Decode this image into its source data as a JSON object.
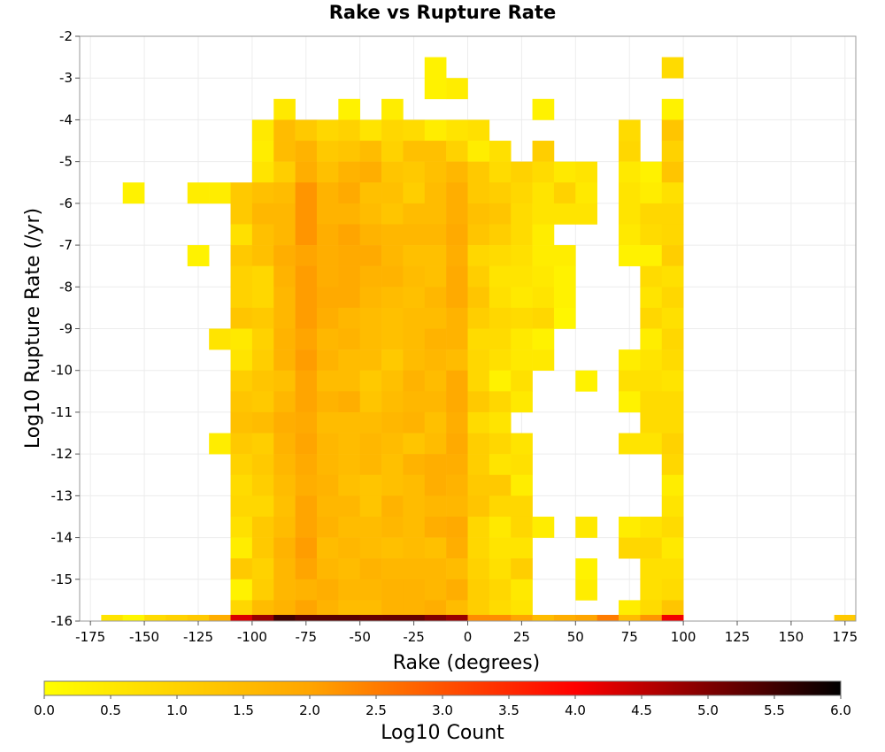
{
  "chart_data": {
    "type": "heatmap",
    "title": "Rake vs Rupture Rate",
    "xlabel": "Rake (degrees)",
    "ylabel": "Log10 Rupture Rate (/yr)",
    "colorbar_label": "Log10 Count",
    "xlim": [
      -180,
      180
    ],
    "ylim": [
      -16,
      -2
    ],
    "x_ticks": [
      -175,
      -150,
      -125,
      -100,
      -75,
      -50,
      -25,
      0,
      25,
      50,
      75,
      100,
      125,
      150,
      175
    ],
    "y_ticks": [
      -2,
      -3,
      -4,
      -5,
      -6,
      -7,
      -8,
      -9,
      -10,
      -11,
      -12,
      -13,
      -14,
      -15,
      -16
    ],
    "colorbar_ticks": [
      "0.0",
      "0.5",
      "1.0",
      "1.5",
      "2.0",
      "2.5",
      "3.0",
      "3.5",
      "4.0",
      "4.5",
      "5.0",
      "5.5",
      "6.0"
    ],
    "colorbar_range": [
      0,
      6
    ],
    "colorscale": [
      "#ffff00",
      "#ffa500",
      "#ff0000",
      "#000000"
    ],
    "grid": true,
    "legend": "bottom colorbar",
    "bin_x_width_deg": 10,
    "bin_y_height": 0.5,
    "x_bin_centers": [
      -165,
      -155,
      -145,
      -135,
      -125,
      -115,
      -105,
      -95,
      -85,
      -75,
      -65,
      -55,
      -45,
      -35,
      -25,
      -15,
      -5,
      5,
      15,
      25,
      35,
      45,
      55,
      65,
      75,
      85,
      95,
      175
    ],
    "y_bin_centers": [
      -2.75,
      -3.25,
      -3.75,
      -4.25,
      -4.75,
      -5.25,
      -5.75,
      -6.25,
      -6.75,
      -7.25,
      -7.75,
      -8.25,
      -8.75,
      -9.25,
      -9.75,
      -10.25,
      -10.75,
      -11.25,
      -11.75,
      -12.25,
      -12.75,
      -13.25,
      -13.75,
      -14.25,
      -14.75,
      -15.25,
      -15.75
    ],
    "bottom_row_values": [
      0.6,
      0.2,
      0.8,
      1.0,
      1.2,
      1.8,
      4.3,
      4.8,
      5.5,
      5.3,
      5.3,
      5.3,
      5.2,
      5.2,
      5.2,
      5.0,
      4.8,
      2.3,
      2.3,
      2.0,
      1.5,
      1.8,
      2.0,
      2.5,
      1.5,
      2.2,
      4.1,
      1.2
    ],
    "values": [
      [
        null,
        null,
        null,
        null,
        null,
        null,
        null,
        null,
        null,
        null,
        null,
        null,
        null,
        null,
        null,
        0.3,
        null,
        null,
        null,
        null,
        null,
        null,
        null,
        null,
        null,
        null,
        0.8,
        null
      ],
      [
        null,
        null,
        null,
        null,
        null,
        null,
        null,
        null,
        null,
        null,
        null,
        null,
        null,
        null,
        null,
        0.3,
        0.4,
        null,
        null,
        null,
        null,
        null,
        null,
        null,
        null,
        null,
        null,
        null
      ],
      [
        null,
        null,
        null,
        null,
        null,
        null,
        null,
        null,
        0.5,
        null,
        null,
        0.3,
        null,
        0.4,
        null,
        null,
        null,
        null,
        null,
        null,
        0.3,
        null,
        null,
        null,
        null,
        null,
        0.3,
        null
      ],
      [
        null,
        null,
        null,
        null,
        null,
        null,
        null,
        0.5,
        1.5,
        1.2,
        0.9,
        1.0,
        0.6,
        0.9,
        0.8,
        0.4,
        0.6,
        0.7,
        null,
        null,
        null,
        null,
        null,
        null,
        0.8,
        null,
        1.3,
        null
      ],
      [
        null,
        null,
        null,
        null,
        null,
        null,
        null,
        0.4,
        1.5,
        1.7,
        1.2,
        1.3,
        1.5,
        1.0,
        1.4,
        1.4,
        1.0,
        0.4,
        0.7,
        null,
        1.1,
        null,
        null,
        null,
        0.9,
        null,
        1.0,
        null
      ],
      [
        null,
        null,
        null,
        null,
        null,
        null,
        null,
        0.6,
        1.1,
        1.8,
        1.4,
        1.7,
        1.8,
        1.3,
        1.2,
        1.4,
        1.6,
        1.2,
        0.8,
        1.0,
        0.8,
        0.5,
        0.6,
        null,
        0.5,
        0.3,
        1.3,
        null
      ],
      [
        null,
        0.3,
        null,
        null,
        0.4,
        0.4,
        1.2,
        1.4,
        1.5,
        2.2,
        1.7,
        1.9,
        1.4,
        1.4,
        1.1,
        1.5,
        1.8,
        1.2,
        1.1,
        0.9,
        0.6,
        1.0,
        0.5,
        null,
        0.6,
        0.4,
        0.7,
        null
      ],
      [
        null,
        null,
        null,
        null,
        null,
        null,
        1.2,
        1.6,
        1.6,
        2.2,
        1.7,
        1.7,
        1.5,
        1.3,
        1.5,
        1.5,
        1.8,
        1.4,
        1.3,
        0.8,
        0.6,
        0.6,
        0.6,
        null,
        0.6,
        0.9,
        0.9,
        null
      ],
      [
        null,
        null,
        null,
        null,
        null,
        null,
        0.7,
        1.4,
        1.6,
        2.2,
        1.8,
        2.0,
        1.7,
        1.6,
        1.6,
        1.6,
        1.9,
        1.3,
        1.1,
        0.8,
        0.4,
        null,
        null,
        null,
        0.5,
        0.8,
        0.9,
        null
      ],
      [
        null,
        null,
        null,
        null,
        0.3,
        null,
        1.2,
        1.4,
        1.8,
        2.0,
        1.8,
        1.9,
        1.9,
        1.6,
        1.4,
        1.4,
        1.8,
        0.9,
        0.8,
        0.7,
        0.4,
        0.4,
        null,
        null,
        0.3,
        0.3,
        1.1,
        null
      ],
      [
        null,
        null,
        null,
        null,
        null,
        null,
        1.0,
        0.9,
        1.7,
        2.1,
        1.8,
        1.9,
        1.7,
        1.7,
        1.5,
        1.4,
        1.9,
        1.1,
        0.6,
        0.6,
        0.5,
        0.3,
        null,
        null,
        null,
        0.8,
        0.7,
        null
      ],
      [
        null,
        null,
        null,
        null,
        null,
        null,
        1.0,
        0.9,
        1.6,
        2.1,
        1.9,
        1.9,
        1.6,
        1.5,
        1.4,
        1.6,
        1.9,
        1.3,
        0.7,
        0.5,
        0.6,
        0.3,
        null,
        null,
        null,
        0.6,
        0.9,
        null
      ],
      [
        null,
        null,
        null,
        null,
        null,
        null,
        1.3,
        1.2,
        1.6,
        2.1,
        1.8,
        1.6,
        1.5,
        1.4,
        1.5,
        1.5,
        1.7,
        1.1,
        0.9,
        0.8,
        0.9,
        0.2,
        null,
        null,
        null,
        0.9,
        0.7,
        null
      ],
      [
        null,
        null,
        null,
        null,
        null,
        0.6,
        0.5,
        1.0,
        1.7,
        2.0,
        1.6,
        1.7,
        1.5,
        1.4,
        1.5,
        1.7,
        1.7,
        0.8,
        0.8,
        0.5,
        0.3,
        null,
        null,
        null,
        null,
        0.4,
        0.9,
        null
      ],
      [
        null,
        null,
        null,
        null,
        null,
        null,
        0.6,
        1.1,
        1.7,
        2.1,
        1.7,
        1.5,
        1.5,
        1.2,
        1.5,
        1.6,
        1.5,
        0.9,
        0.7,
        0.5,
        0.5,
        null,
        null,
        null,
        0.4,
        0.6,
        0.8,
        null
      ],
      [
        null,
        null,
        null,
        null,
        null,
        null,
        1.1,
        1.3,
        1.4,
        2.0,
        1.5,
        1.5,
        1.2,
        1.4,
        1.7,
        1.5,
        1.9,
        0.9,
        0.3,
        0.7,
        null,
        null,
        0.3,
        null,
        0.7,
        0.7,
        0.6,
        null
      ],
      [
        null,
        null,
        null,
        null,
        null,
        null,
        1.3,
        1.2,
        1.6,
        2.0,
        1.7,
        1.8,
        1.3,
        1.5,
        1.6,
        1.6,
        1.9,
        1.2,
        0.9,
        0.5,
        null,
        null,
        null,
        null,
        0.3,
        0.8,
        0.8,
        null
      ],
      [
        null,
        null,
        null,
        null,
        null,
        null,
        1.4,
        1.5,
        1.8,
        1.9,
        1.5,
        1.5,
        1.5,
        1.6,
        1.7,
        1.4,
        1.8,
        0.8,
        0.6,
        null,
        null,
        null,
        null,
        null,
        null,
        0.8,
        0.8,
        null
      ],
      [
        null,
        null,
        null,
        null,
        null,
        0.4,
        1.2,
        1.1,
        1.7,
        2.0,
        1.6,
        1.5,
        1.6,
        1.5,
        1.3,
        1.5,
        1.9,
        1.1,
        0.9,
        0.6,
        null,
        null,
        null,
        null,
        0.6,
        0.6,
        1.0,
        null
      ],
      [
        null,
        null,
        null,
        null,
        null,
        null,
        1.0,
        1.2,
        1.6,
        1.9,
        1.6,
        1.5,
        1.6,
        1.4,
        1.7,
        1.8,
        1.8,
        1.1,
        0.6,
        0.7,
        null,
        null,
        null,
        null,
        null,
        null,
        0.9,
        null
      ],
      [
        null,
        null,
        null,
        null,
        null,
        null,
        0.8,
        1.1,
        1.5,
        1.8,
        1.7,
        1.4,
        1.3,
        1.4,
        1.5,
        1.8,
        1.7,
        1.2,
        1.2,
        0.4,
        null,
        null,
        null,
        null,
        null,
        null,
        0.4,
        null
      ],
      [
        null,
        null,
        null,
        null,
        null,
        null,
        0.9,
        0.9,
        1.4,
        2.0,
        1.6,
        1.6,
        1.3,
        1.7,
        1.5,
        1.6,
        1.6,
        1.3,
        0.9,
        0.9,
        null,
        null,
        null,
        null,
        null,
        null,
        0.6,
        null
      ],
      [
        null,
        null,
        null,
        null,
        null,
        null,
        0.7,
        1.2,
        1.5,
        2.0,
        1.7,
        1.5,
        1.5,
        1.6,
        1.5,
        1.8,
        1.9,
        0.9,
        0.5,
        0.9,
        0.4,
        null,
        0.5,
        null,
        0.4,
        0.6,
        0.8,
        null
      ],
      [
        null,
        null,
        null,
        null,
        null,
        null,
        0.4,
        1.2,
        1.7,
        2.1,
        1.5,
        1.6,
        1.5,
        1.4,
        1.5,
        1.4,
        1.8,
        0.9,
        0.6,
        0.6,
        null,
        null,
        null,
        null,
        0.9,
        0.9,
        0.5,
        null
      ],
      [
        null,
        null,
        null,
        null,
        null,
        null,
        1.2,
        1.0,
        1.6,
        2.0,
        1.6,
        1.5,
        1.7,
        1.6,
        1.6,
        1.6,
        1.5,
        1.0,
        0.7,
        1.1,
        null,
        null,
        0.3,
        null,
        null,
        0.7,
        0.7,
        null
      ],
      [
        null,
        null,
        null,
        null,
        null,
        null,
        0.3,
        1.1,
        1.6,
        1.7,
        1.8,
        1.6,
        1.6,
        1.7,
        1.7,
        1.6,
        1.8,
        1.1,
        0.9,
        0.5,
        null,
        null,
        0.4,
        null,
        null,
        0.7,
        0.8,
        null
      ],
      [
        null,
        null,
        null,
        null,
        null,
        null,
        0.9,
        1.5,
        1.7,
        2.0,
        1.7,
        1.5,
        1.5,
        1.7,
        1.7,
        1.8,
        1.5,
        1.1,
        0.8,
        0.6,
        null,
        null,
        null,
        null,
        0.4,
        0.8,
        1.3,
        null
      ]
    ]
  }
}
